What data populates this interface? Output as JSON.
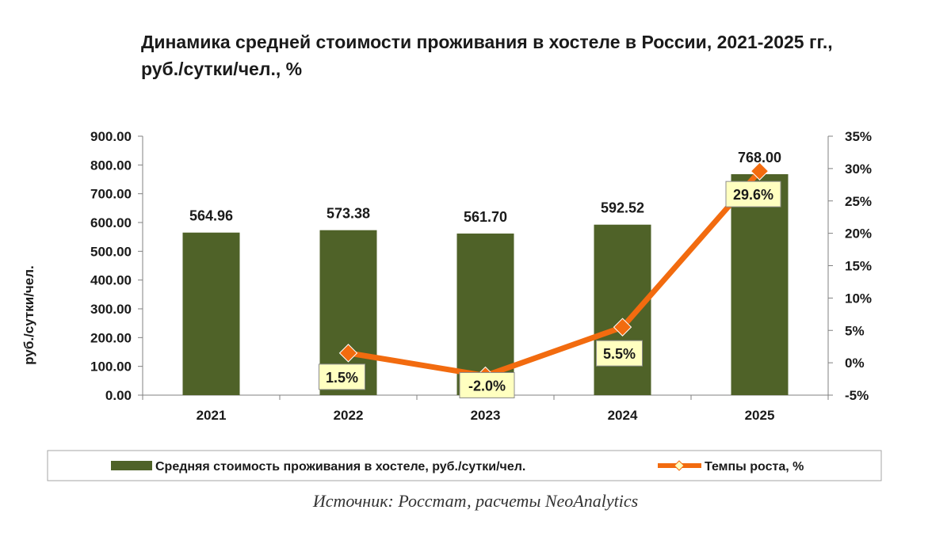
{
  "chart_data": {
    "type": "bar",
    "title_line1": "Динамика средней стоимости проживания в хостеле в России, 2021-2025 гг.,",
    "title_line2": "руб./сутки/чел., %",
    "ylabel": "руб./сутки/чел.",
    "categories": [
      "2021",
      "2022",
      "2023",
      "2024",
      "2025"
    ],
    "y_left": {
      "min": 0,
      "max": 900,
      "step": 100,
      "ticks": [
        "0.00",
        "100.00",
        "200.00",
        "300.00",
        "400.00",
        "500.00",
        "600.00",
        "700.00",
        "800.00",
        "900.00"
      ]
    },
    "y_right": {
      "min": -5,
      "max": 35,
      "step": 5,
      "ticks": [
        "-5%",
        "0%",
        "5%",
        "10%",
        "15%",
        "20%",
        "25%",
        "30%",
        "35%"
      ]
    },
    "series": [
      {
        "name": "Средняя стоимость проживания в хостеле, руб./сутки/чел.",
        "type": "bar",
        "axis": "left",
        "values": [
          564.96,
          573.38,
          561.7,
          592.52,
          768.0
        ],
        "labels": [
          "564.96",
          "573.38",
          "561.70",
          "592.52",
          "768.00"
        ]
      },
      {
        "name": "Темпы роста, %",
        "type": "line",
        "axis": "right",
        "values": [
          null,
          1.5,
          -2.0,
          5.5,
          29.6
        ],
        "labels": [
          null,
          "1.5%",
          "-2.0%",
          "5.5%",
          "29.6%"
        ]
      }
    ],
    "grid": false,
    "legend_position": "bottom",
    "colors": {
      "bar": "#4f6228",
      "line": "#f26b0f",
      "marker_fill": "#f26b0f",
      "label_box": "#ffffc0"
    }
  },
  "source": "Источник: Росстат, расчеты NeoAnalytics"
}
